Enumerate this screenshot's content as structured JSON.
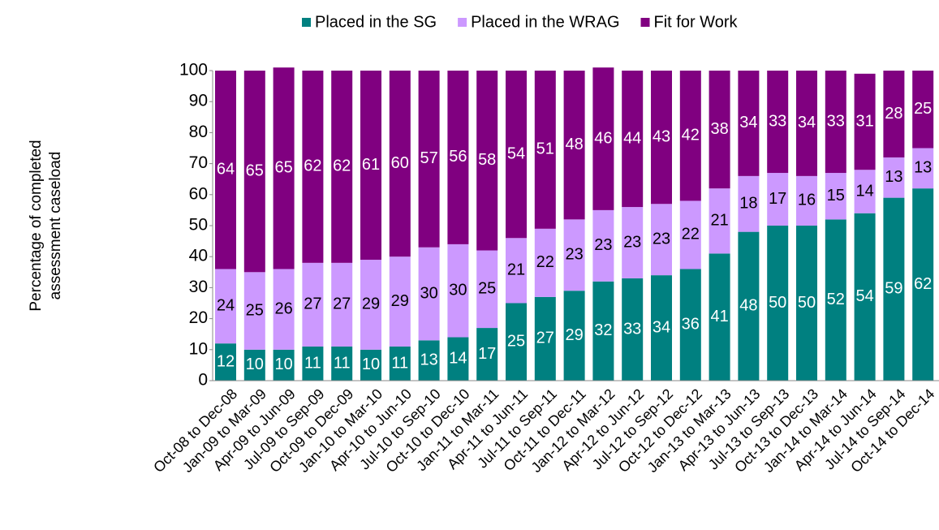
{
  "chart_data": {
    "type": "stacked_bar",
    "ylabel": [
      "Percentage of completed",
      "assessment caseload"
    ],
    "categories": [
      "Oct-08 to Dec-08",
      "Jan-09 to Mar-09",
      "Apr-09 to Jun-09",
      "Jul-09 to Sep-09",
      "Oct-09 to Dec-09",
      "Jan-10 to Mar-10",
      "Apr-10 to Jun-10",
      "Jul-10 to Sep-10",
      "Oct-10 to Dec-10",
      "Jan-11 to Mar-11",
      "Apr-11 to Jun-11",
      "Jul-11 to Sep-11",
      "Oct-11 to Dec-11",
      "Jan-12 to Mar-12",
      "Apr-12 to Jun-12",
      "Jul-12 to Sep-12",
      "Oct-12 to Dec-12",
      "Jan-13 to Mar-13",
      "Apr-13 to Jun-13",
      "Jul-13 to Sep-13",
      "Oct-13 to Dec-13",
      "Jan-14 to Mar-14",
      "Apr-14 to Jun-14",
      "Jul-14 to Sep-14",
      "Oct-14 to Dec-14"
    ],
    "series": [
      {
        "name": "Placed in the SG",
        "color": "#008080",
        "label_color": "#ffffff",
        "values": [
          12,
          10,
          10,
          11,
          11,
          10,
          11,
          13,
          14,
          17,
          25,
          27,
          29,
          32,
          33,
          34,
          36,
          41,
          48,
          50,
          50,
          52,
          54,
          59,
          62
        ]
      },
      {
        "name": "Placed in the WRAG",
        "color": "#cc99ff",
        "label_color": "#000000",
        "values": [
          24,
          25,
          26,
          27,
          27,
          29,
          29,
          30,
          30,
          25,
          21,
          22,
          23,
          23,
          23,
          23,
          22,
          21,
          18,
          17,
          16,
          15,
          14,
          13,
          13
        ]
      },
      {
        "name": "Fit for Work",
        "color": "#800080",
        "label_color": "#ffffff",
        "values": [
          64,
          65,
          65,
          62,
          62,
          61,
          60,
          57,
          56,
          58,
          54,
          51,
          48,
          46,
          44,
          43,
          42,
          38,
          34,
          33,
          34,
          33,
          31,
          28,
          25
        ]
      }
    ],
    "ylim": [
      0,
      100
    ],
    "yticks": [
      0,
      10,
      20,
      30,
      40,
      50,
      60,
      70,
      80,
      90,
      100
    ],
    "legend": "top"
  }
}
